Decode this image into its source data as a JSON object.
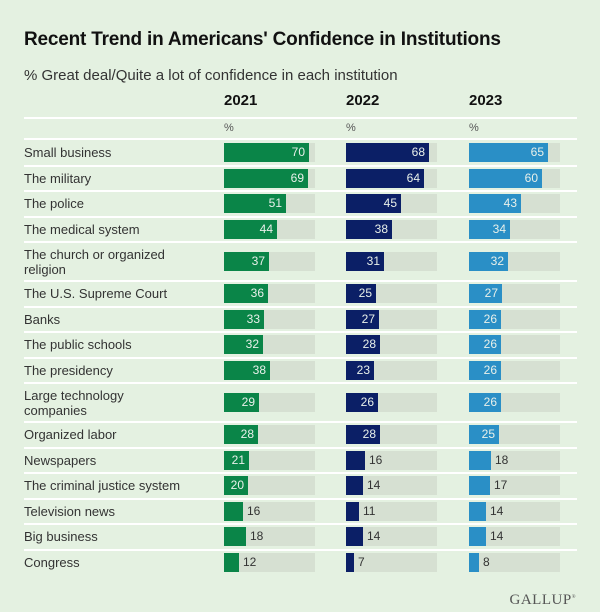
{
  "chart_data": {
    "type": "bar",
    "orientation": "horizontal",
    "title": "Recent Trend in Americans' Confidence in Institutions",
    "subtitle": "% Great deal/Quite a lot of confidence in each institution",
    "unit_label": "%",
    "xlim": [
      0,
      75
    ],
    "categories": [
      "Small business",
      "The military",
      "The police",
      "The medical system",
      "The church or organized religion",
      "The U.S. Supreme Court",
      "Banks",
      "The public schools",
      "The presidency",
      "Large technology companies",
      "Organized labor",
      "Newspapers",
      "The criminal justice system",
      "Television news",
      "Big business",
      "Congress"
    ],
    "series": [
      {
        "name": "2021",
        "color": "#0a8548",
        "values": [
          70,
          69,
          51,
          44,
          37,
          36,
          33,
          32,
          38,
          29,
          28,
          21,
          20,
          16,
          18,
          12
        ]
      },
      {
        "name": "2022",
        "color": "#0b1f66",
        "values": [
          68,
          64,
          45,
          38,
          31,
          25,
          27,
          28,
          23,
          26,
          28,
          16,
          14,
          11,
          14,
          7
        ]
      },
      {
        "name": "2023",
        "color": "#2a8fc6",
        "values": [
          65,
          60,
          43,
          34,
          32,
          27,
          26,
          26,
          26,
          26,
          25,
          18,
          17,
          14,
          14,
          8
        ]
      }
    ]
  },
  "labels_display": [
    [
      "Small business"
    ],
    [
      "The military"
    ],
    [
      "The police"
    ],
    [
      "The medical system"
    ],
    [
      "The church or organized",
      "religion"
    ],
    [
      "The U.S. Supreme Court"
    ],
    [
      "Banks"
    ],
    [
      "The public schools"
    ],
    [
      "The presidency"
    ],
    [
      "Large technology",
      "companies"
    ],
    [
      "Organized labor"
    ],
    [
      "Newspapers"
    ],
    [
      "The criminal justice system"
    ],
    [
      "Television news"
    ],
    [
      "Big business"
    ],
    [
      "Congress"
    ]
  ],
  "source": {
    "logo_text": "GALLUP"
  },
  "colors": {
    "background": "#e4f1e1",
    "track": "#d6e0d2"
  }
}
